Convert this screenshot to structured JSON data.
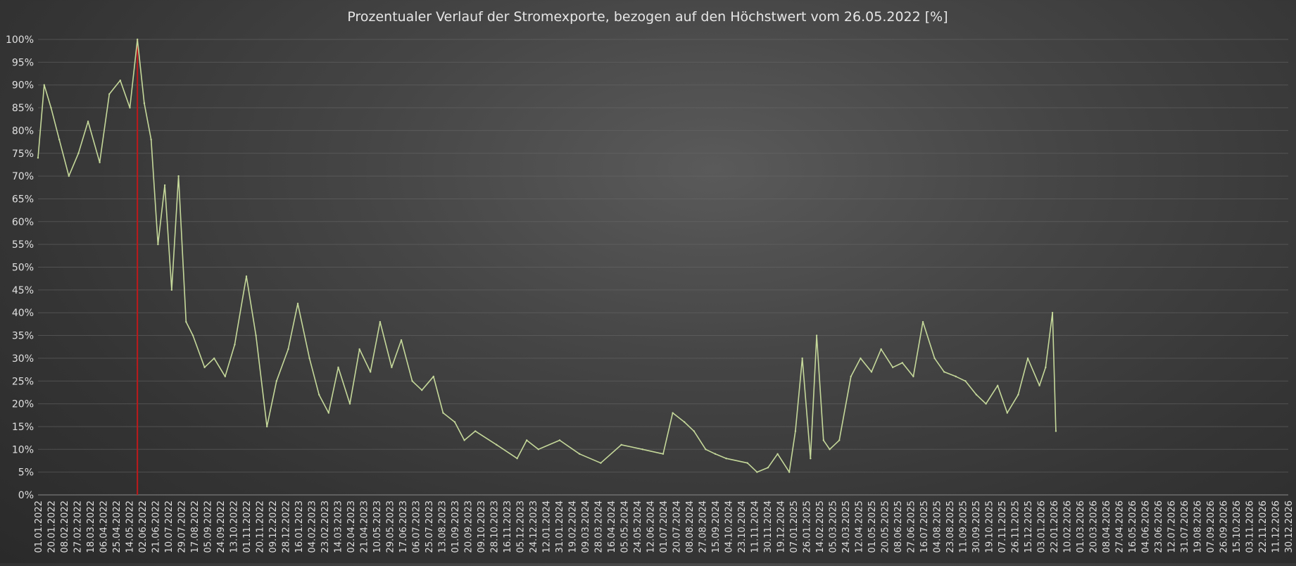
{
  "chart_data": {
    "type": "line",
    "title": "Prozentualer Verlauf der Stromexporte, bezogen auf den Höchstwert vom 26.05.2022 [%]",
    "xlabel": "",
    "ylabel": "",
    "ylim": [
      0,
      100
    ],
    "grid": true,
    "y_ticks": [
      "0%",
      "5%",
      "10%",
      "15%",
      "20%",
      "25%",
      "30%",
      "35%",
      "40%",
      "45%",
      "50%",
      "55%",
      "60%",
      "65%",
      "70%",
      "75%",
      "80%",
      "85%",
      "90%",
      "95%",
      "100%"
    ],
    "x_ticks": [
      "01.01.2022",
      "20.01.2022",
      "08.02.2022",
      "27.02.2022",
      "18.03.2022",
      "06.04.2022",
      "25.04.2022",
      "14.05.2022",
      "02.06.2022",
      "21.06.2022",
      "10.07.2022",
      "29.07.2022",
      "17.08.2022",
      "05.09.2022",
      "24.09.2022",
      "13.10.2022",
      "01.11.2022",
      "20.11.2022",
      "09.12.2022",
      "28.12.2022",
      "16.01.2023",
      "04.02.2023",
      "23.02.2023",
      "14.03.2023",
      "02.04.2023",
      "21.04.2023",
      "10.05.2023",
      "29.05.2023",
      "17.06.2023",
      "06.07.2023",
      "25.07.2023",
      "13.08.2023",
      "01.09.2023",
      "20.09.2023",
      "09.10.2023",
      "28.10.2023",
      "16.11.2023",
      "05.12.2023",
      "24.12.2023",
      "12.01.2024",
      "31.01.2024",
      "19.02.2024",
      "09.03.2024",
      "28.03.2024",
      "16.04.2024",
      "05.05.2024",
      "24.05.2024",
      "12.06.2024",
      "01.07.2024",
      "20.07.2024",
      "08.08.2024",
      "27.08.2024",
      "15.09.2024",
      "04.10.2024",
      "23.10.2024",
      "11.11.2024",
      "30.11.2024",
      "19.12.2024",
      "07.01.2025",
      "26.01.2025",
      "14.02.2025",
      "05.03.2025",
      "24.03.2025",
      "12.04.2025",
      "01.05.2025",
      "20.05.2025",
      "08.06.2025",
      "27.06.2025",
      "16.07.2025",
      "04.08.2025",
      "23.08.2025",
      "11.09.2025",
      "30.09.2025",
      "19.10.2025",
      "07.11.2025",
      "26.11.2025",
      "15.12.2025",
      "03.01.2026",
      "22.01.2026",
      "10.02.2026",
      "01.03.2026",
      "20.03.2026",
      "08.04.2026",
      "27.04.2026",
      "16.05.2026",
      "04.06.2026",
      "23.06.2026",
      "12.07.2026",
      "31.07.2026",
      "19.08.2026",
      "07.09.2026",
      "26.09.2026",
      "15.10.2026",
      "03.11.2026",
      "22.11.2026",
      "11.12.2026",
      "30.12.2026"
    ],
    "marker": {
      "x": "26.05.2022",
      "color": "#c0191b"
    },
    "series": [
      {
        "color": "#c5d89a",
        "x": [
          "01.01.2022",
          "10.01.2022",
          "20.01.2022",
          "01.02.2022",
          "15.02.2022",
          "01.03.2022",
          "15.03.2022",
          "01.04.2022",
          "15.04.2022",
          "01.05.2022",
          "15.05.2022",
          "26.05.2022",
          "05.06.2022",
          "15.06.2022",
          "25.06.2022",
          "05.07.2022",
          "15.07.2022",
          "25.07.2022",
          "05.08.2022",
          "15.08.2022",
          "01.09.2022",
          "15.09.2022",
          "01.10.2022",
          "15.10.2022",
          "01.11.2022",
          "15.11.2022",
          "01.12.2022",
          "15.12.2022",
          "01.01.2023",
          "15.01.2023",
          "01.02.2023",
          "15.02.2023",
          "01.03.2023",
          "15.03.2023",
          "01.04.2023",
          "15.04.2023",
          "01.05.2023",
          "15.05.2023",
          "01.06.2023",
          "15.06.2023",
          "01.07.2023",
          "15.07.2023",
          "01.08.2023",
          "15.08.2023",
          "01.09.2023",
          "15.09.2023",
          "01.10.2023",
          "01.11.2023",
          "01.12.2023",
          "15.12.2023",
          "01.01.2024",
          "01.02.2024",
          "01.03.2024",
          "01.04.2024",
          "01.05.2024",
          "01.06.2024",
          "01.07.2024",
          "15.07.2024",
          "01.08.2024",
          "15.08.2024",
          "01.09.2024",
          "15.09.2024",
          "01.10.2024",
          "01.11.2024",
          "15.11.2024",
          "01.12.2024",
          "15.12.2024",
          "01.01.2025",
          "10.01.2025",
          "20.01.2025",
          "01.02.2025",
          "10.02.2025",
          "20.02.2025",
          "01.03.2025",
          "15.03.2025",
          "01.04.2025",
          "15.04.2025",
          "01.05.2025",
          "15.05.2025",
          "01.06.2025",
          "15.06.2025",
          "01.07.2025",
          "15.07.2025",
          "01.08.2025",
          "15.08.2025",
          "01.09.2025",
          "15.09.2025",
          "01.10.2025",
          "15.10.2025",
          "01.11.2025",
          "15.11.2025",
          "01.12.2025",
          "15.12.2025",
          "01.01.2026",
          "10.01.2026",
          "20.01.2026",
          "25.01.2026"
        ],
        "values": [
          74,
          90,
          85,
          78,
          70,
          75,
          82,
          73,
          88,
          91,
          85,
          100,
          86,
          78,
          55,
          68,
          45,
          70,
          38,
          35,
          28,
          30,
          26,
          33,
          48,
          35,
          15,
          25,
          32,
          42,
          30,
          22,
          18,
          28,
          20,
          32,
          27,
          38,
          28,
          34,
          25,
          23,
          26,
          18,
          16,
          12,
          14,
          11,
          8,
          12,
          10,
          12,
          9,
          7,
          11,
          10,
          9,
          18,
          16,
          14,
          10,
          9,
          8,
          7,
          5,
          6,
          9,
          5,
          14,
          30,
          8,
          35,
          12,
          10,
          12,
          26,
          30,
          27,
          32,
          28,
          29,
          26,
          38,
          30,
          27,
          26,
          25,
          22,
          20,
          24,
          18,
          22,
          30,
          24,
          28,
          40,
          14
        ]
      }
    ]
  }
}
